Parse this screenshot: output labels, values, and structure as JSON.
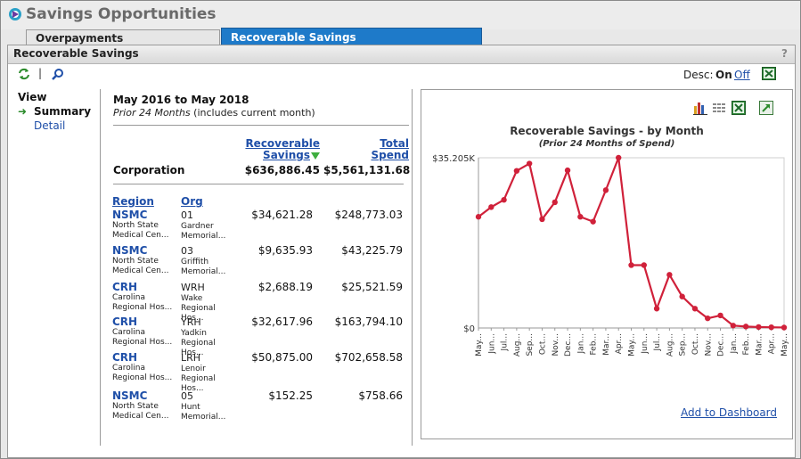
{
  "app": {
    "title": "Savings Opportunities"
  },
  "tabs": [
    {
      "label": "Overpayments",
      "active": false
    },
    {
      "label": "Recoverable Savings",
      "active": true
    }
  ],
  "panel": {
    "title": "Recoverable Savings",
    "help": "?"
  },
  "toolbar": {
    "separator": "|",
    "desc_label": "Desc:",
    "desc_on": "On",
    "desc_off": "Off"
  },
  "nav": {
    "title": "View",
    "arrow": "➜",
    "items": [
      {
        "label": "Summary",
        "selected": true
      },
      {
        "label": "Detail",
        "selected": false
      }
    ]
  },
  "summary": {
    "date_range": "May 2016 to May 2018",
    "prior_italic": "Prior 24 Months",
    "prior_rest": " (includes current month)",
    "col_recoverable_line1": "Recoverable",
    "col_recoverable_line2": "Savings",
    "col_total_line1": "Total",
    "col_total_line2": "Spend",
    "corp_label": "Corporation",
    "corp_recoverable": "$636,886.45",
    "corp_total": "$5,561,131.68",
    "th_region": "Region",
    "th_org": "Org"
  },
  "rows": [
    {
      "region": "NSMC",
      "region_l1": "North State",
      "region_l2": "Medical Cen...",
      "org": "01",
      "org_l1": "Gardner",
      "org_l2": "Memorial...",
      "recoverable": "$34,621.28",
      "total": "$248,773.03"
    },
    {
      "region": "NSMC",
      "region_l1": "North State",
      "region_l2": "Medical Cen...",
      "org": "03",
      "org_l1": "Griffith",
      "org_l2": "Memorial...",
      "recoverable": "$9,635.93",
      "total": "$43,225.79"
    },
    {
      "region": "CRH",
      "region_l1": "Carolina",
      "region_l2": "Regional Hos...",
      "org": "WRH",
      "org_l1": "Wake",
      "org_l2": "Regional Hos...",
      "recoverable": "$2,688.19",
      "total": "$25,521.59"
    },
    {
      "region": "CRH",
      "region_l1": "Carolina",
      "region_l2": "Regional Hos...",
      "org": "YRH",
      "org_l1": "Yadkin",
      "org_l2": "Regional Hos...",
      "recoverable": "$32,617.96",
      "total": "$163,794.10"
    },
    {
      "region": "CRH",
      "region_l1": "Carolina",
      "region_l2": "Regional Hos...",
      "org": "LRH",
      "org_l1": "Lenoir",
      "org_l2": "Regional Hos...",
      "recoverable": "$50,875.00",
      "total": "$702,658.58"
    },
    {
      "region": "NSMC",
      "region_l1": "North State",
      "region_l2": "Medical Cen...",
      "org": "05",
      "org_l1": "Hunt",
      "org_l2": "Memorial...",
      "recoverable": "$152.25",
      "total": "$758.66"
    }
  ],
  "chart_panel": {
    "add_dashboard": "Add to Dashboard"
  },
  "icons": [
    "app-logo-icon",
    "refresh-icon",
    "search-icon",
    "excel-icon",
    "bar-chart-icon",
    "grid-icon",
    "export-icon"
  ],
  "colors": {
    "accent_tab": "#1e7ac9",
    "link": "#1f4fa8",
    "series": "#d0213a"
  },
  "chart_data": {
    "type": "line",
    "title": "Recoverable Savings - by Month",
    "subtitle": "(Prior 24 Months of Spend)",
    "xlabel": "",
    "ylabel": "",
    "ytick_labels": [
      "$35.205K",
      "$0"
    ],
    "ylim": [
      0,
      35205
    ],
    "grid": false,
    "x": [
      "May...",
      "Jun...",
      "Jul...",
      "Aug...",
      "Sep...",
      "Oct...",
      "Nov...",
      "Dec...",
      "Jan...",
      "Feb...",
      "Mar...",
      "Apr...",
      "May...",
      "Jun...",
      "Jul...",
      "Aug...",
      "Sep...",
      "Oct...",
      "Nov...",
      "Dec...",
      "Jan...",
      "Feb...",
      "Mar...",
      "Apr...",
      "May..."
    ],
    "series": [
      {
        "values": [
          23000,
          25000,
          26500,
          32500,
          34000,
          22500,
          26000,
          32600,
          23000,
          22000,
          28500,
          35205,
          13000,
          13000,
          4000,
          11000,
          6500,
          4000,
          2000,
          2600,
          500,
          300,
          200,
          150,
          100
        ]
      }
    ]
  }
}
